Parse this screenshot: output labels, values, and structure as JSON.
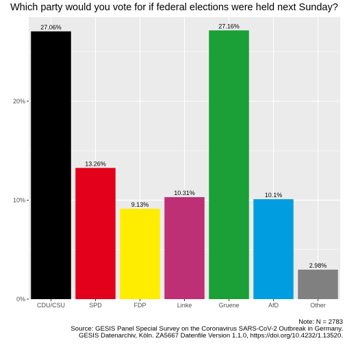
{
  "chart_data": {
    "type": "bar",
    "title": "Which party would you vote for if federal elections were held next Sunday?",
    "xlabel": "",
    "ylabel": "",
    "categories": [
      "CDU/CSU",
      "SPD",
      "FDP",
      "Linke",
      "Gruene",
      "AfD",
      "Other"
    ],
    "values": [
      27.06,
      13.26,
      9.13,
      10.31,
      27.16,
      10.1,
      2.98
    ],
    "data_labels": [
      "27.06%",
      "13.26%",
      "9.13%",
      "10.31%",
      "27.16%",
      "10.1%",
      "2.98%"
    ],
    "colors": [
      "#000000",
      "#e2001a",
      "#ffed00",
      "#be3075",
      "#1aa037",
      "#009ee0",
      "#808080"
    ],
    "yticks": [
      0,
      10,
      20
    ],
    "ytick_labels": [
      "0%",
      "10%",
      "20%"
    ],
    "ylim": [
      0,
      28.5
    ],
    "grid": true,
    "legend": "none",
    "panel_background": "#ebebeb",
    "gridline_color": "#ffffff"
  },
  "caption": {
    "note": "Note: N = 2783",
    "source": "Source: GESIS Panel Special Survey on the Coronavirus SARS-CoV-2 Outbreak in Germany.",
    "archive": "GESIS Datenarchiv, Köln. ZA5667 Datenfile Version 1.1.0, https://doi.org/10.4232/1.13520."
  }
}
